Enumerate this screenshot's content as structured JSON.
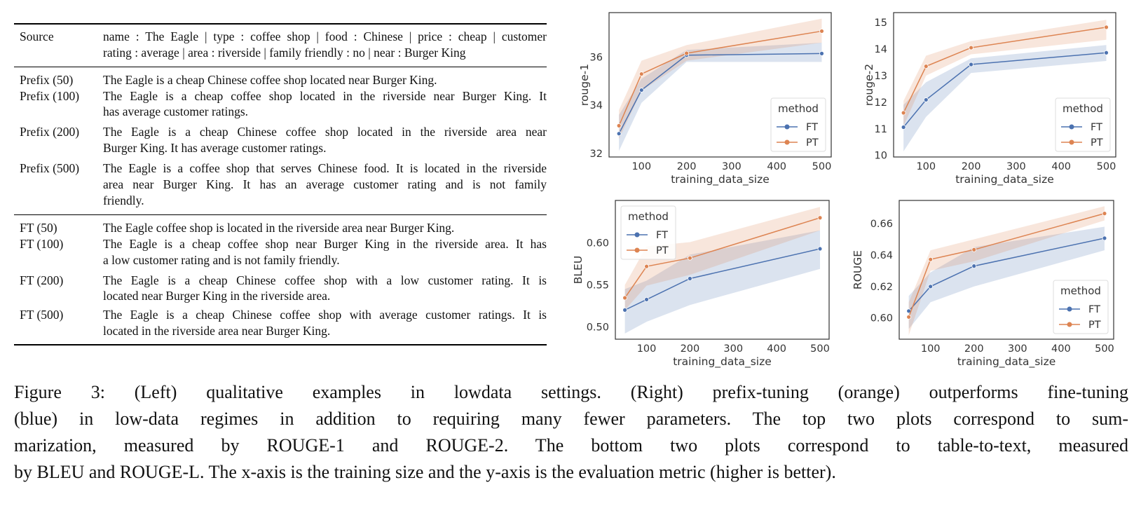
{
  "table": {
    "rows": [
      {
        "label": "Source",
        "lines": [
          "name : The Eagle | type : coffee shop | food : Chinese | price : cheap | customer",
          "rating : average | area : riverside | family friendly : no | near : Burger King"
        ]
      },
      {
        "label": "Prefix (50)",
        "lines": [
          "The Eagle is a cheap Chinese coffee shop located near Burger King."
        ]
      },
      {
        "label": "Prefix (100)",
        "lines": [
          "The Eagle is a cheap coffee shop located in the riverside near Burger King. It",
          "has average customer ratings."
        ]
      },
      {
        "label": "Prefix (200)",
        "lines": [
          "The Eagle is a cheap Chinese coffee shop located in the riverside area near",
          "Burger King. It has average customer ratings."
        ]
      },
      {
        "label": "Prefix (500)",
        "lines": [
          "The Eagle is a coffee shop that serves Chinese food. It is located in the riverside",
          "area near Burger King.  It has an average customer rating and is not family",
          "friendly."
        ]
      },
      {
        "label": "FT (50)",
        "lines": [
          "The Eagle coffee shop is located in the riverside area near Burger King."
        ]
      },
      {
        "label": "FT (100)",
        "lines": [
          "The Eagle is a cheap coffee shop near Burger King in the riverside area. It has",
          "a low customer rating and is not family friendly."
        ]
      },
      {
        "label": "FT (200)",
        "lines": [
          "The Eagle is a cheap Chinese coffee shop with a low customer rating.  It is",
          "located near Burger King in the riverside area."
        ]
      },
      {
        "label": "FT (500)",
        "lines": [
          "The Eagle is a cheap Chinese coffee shop with average customer ratings. It is",
          "located in the riverside area near Burger King."
        ]
      }
    ]
  },
  "caption": {
    "lines": [
      "Figure 3:  (Left) qualitative examples in lowdata settings. (Right) prefix-tuning (orange) outperforms fine-tuning",
      "(blue) in low-data regimes in addition to requiring many fewer parameters. The top two plots correspond to sum-",
      "marization, measured by ROUGE-1 and ROUGE-2. The bottom two plots correspond to table-to-text, measured",
      "by BLEU and ROUGE-L. The x-axis is the training size and the y-axis is the evaluation metric (higher is better)."
    ]
  },
  "colors": {
    "FT": "#4c72b0",
    "PT": "#dd8452"
  },
  "chart_data": [
    {
      "type": "line",
      "title": "",
      "xlabel": "training_data_size",
      "ylabel": "rouge-1",
      "xlim": [
        28,
        521
      ],
      "ylim": [
        31.85,
        37.85
      ],
      "xticks": [
        100,
        200,
        300,
        400,
        500
      ],
      "yticks": [
        32,
        34,
        36
      ],
      "grid": false,
      "legend": {
        "title": "method",
        "placement": "lower-right"
      },
      "x": [
        50,
        100,
        200,
        500
      ],
      "series": [
        {
          "name": "FT",
          "values": [
            32.82,
            34.63,
            36.08,
            36.15
          ],
          "lower": [
            32.1,
            34.1,
            35.8,
            35.8
          ],
          "upper": [
            33.6,
            35.1,
            36.3,
            36.6
          ]
        },
        {
          "name": "PT",
          "values": [
            33.15,
            35.3,
            36.16,
            37.08
          ],
          "lower": [
            32.6,
            34.6,
            35.85,
            36.6
          ],
          "upper": [
            33.8,
            35.85,
            36.5,
            37.6
          ]
        }
      ]
    },
    {
      "type": "line",
      "title": "",
      "xlabel": "training_data_size",
      "ylabel": "rouge-2",
      "xlim": [
        28,
        521
      ],
      "ylim": [
        9.94,
        15.37
      ],
      "xticks": [
        100,
        200,
        300,
        400,
        500
      ],
      "yticks": [
        10,
        11,
        12,
        13,
        14,
        15
      ],
      "grid": false,
      "legend": {
        "title": "method",
        "placement": "lower-right"
      },
      "x": [
        50,
        100,
        200,
        500
      ],
      "series": [
        {
          "name": "FT",
          "values": [
            11.06,
            12.09,
            13.42,
            13.86
          ],
          "lower": [
            10.15,
            11.45,
            13.1,
            13.55
          ],
          "upper": [
            11.9,
            12.75,
            13.65,
            14.15
          ]
        },
        {
          "name": "PT",
          "values": [
            11.6,
            13.35,
            14.05,
            14.82
          ],
          "lower": [
            11.1,
            13.0,
            13.8,
            14.35
          ],
          "upper": [
            12.05,
            13.75,
            14.3,
            15.1
          ]
        }
      ]
    },
    {
      "type": "line",
      "title": "",
      "xlabel": "training_data_size",
      "ylabel": "BLEU",
      "xlim": [
        28,
        521
      ],
      "ylim": [
        0.4852,
        0.6507
      ],
      "xticks": [
        100,
        200,
        300,
        400,
        500
      ],
      "yticks": [
        0.5,
        0.55,
        0.6
      ],
      "grid": false,
      "legend": {
        "title": "method",
        "placement": "upper-left"
      },
      "x": [
        50,
        100,
        200,
        500
      ],
      "series": [
        {
          "name": "FT",
          "values": [
            0.52,
            0.5325,
            0.5575,
            0.593
          ],
          "lower": [
            0.492,
            0.506,
            0.526,
            0.569
          ],
          "upper": [
            0.545,
            0.555,
            0.586,
            0.615
          ]
        },
        {
          "name": "PT",
          "values": [
            0.5345,
            0.572,
            0.582,
            0.63
          ],
          "lower": [
            0.52,
            0.549,
            0.562,
            0.615
          ],
          "upper": [
            0.55,
            0.596,
            0.601,
            0.643
          ]
        }
      ]
    },
    {
      "type": "line",
      "title": "",
      "xlabel": "training_data_size",
      "ylabel": "ROUGE",
      "xlim": [
        28,
        521
      ],
      "ylim": [
        0.5865,
        0.6747
      ],
      "xticks": [
        100,
        200,
        300,
        400,
        500
      ],
      "yticks": [
        0.6,
        0.62,
        0.64,
        0.66
      ],
      "grid": false,
      "legend": {
        "title": "method",
        "placement": "lower-right"
      },
      "x": [
        50,
        100,
        200,
        500
      ],
      "series": [
        {
          "name": "FT",
          "values": [
            0.6044,
            0.62,
            0.633,
            0.6507
          ],
          "lower": [
            0.593,
            0.61,
            0.62,
            0.643
          ],
          "upper": [
            0.614,
            0.629,
            0.645,
            0.658
          ]
        },
        {
          "name": "PT",
          "values": [
            0.6006,
            0.6372,
            0.6434,
            0.6664
          ],
          "lower": [
            0.589,
            0.63,
            0.636,
            0.662
          ],
          "upper": [
            0.61,
            0.643,
            0.65,
            0.671
          ]
        }
      ]
    }
  ]
}
